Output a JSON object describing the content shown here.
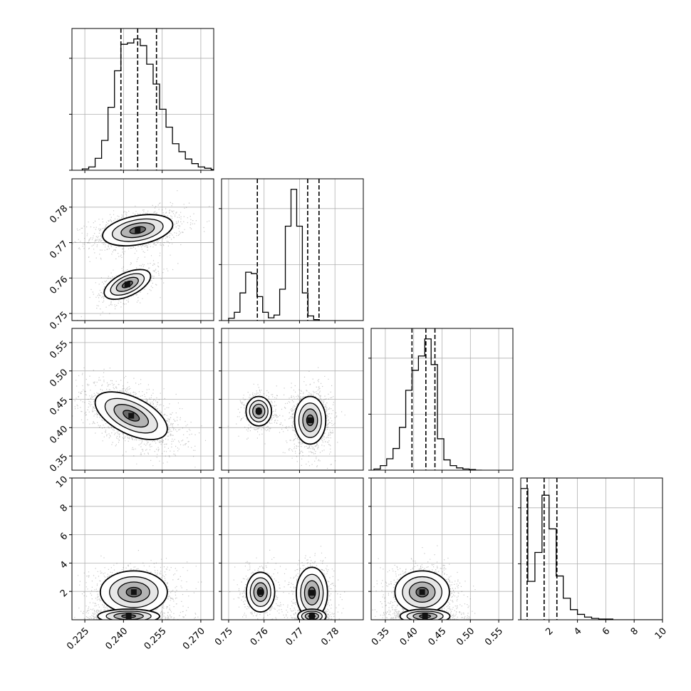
{
  "chart_data": {
    "type": "corner",
    "n_params": 4,
    "grid": true,
    "params": [
      {
        "range": [
          0.22,
          0.275
        ],
        "ticks": [
          0.225,
          0.24,
          0.255,
          0.27
        ],
        "tick_labels": [
          "0.225",
          "0.240",
          "0.255",
          "0.270"
        ],
        "quantiles": [
          0.239,
          0.2455,
          0.2528
        ],
        "hist": {
          "start": 0.224,
          "width": 0.0025,
          "counts": [
            2,
            5,
            18,
            45,
            95,
            150,
            190,
            192,
            198,
            188,
            160,
            130,
            92,
            65,
            40,
            28,
            17,
            10,
            5,
            3,
            1
          ]
        }
      },
      {
        "range": [
          0.748,
          0.788
        ],
        "ticks": [
          0.75,
          0.76,
          0.77,
          0.78
        ],
        "tick_labels": [
          "0.75",
          "0.76",
          "0.77",
          "0.78"
        ],
        "quantiles": [
          0.7581,
          0.7723,
          0.7755
        ],
        "hist": {
          "start": 0.75,
          "width": 0.0016,
          "counts": [
            5,
            18,
            60,
            105,
            102,
            52,
            18,
            6,
            12,
            68,
            205,
            285,
            205,
            60,
            10,
            2
          ]
        }
      },
      {
        "range": [
          0.325,
          0.575
        ],
        "ticks": [
          0.35,
          0.4,
          0.45,
          0.5,
          0.55
        ],
        "tick_labels": [
          "0.35",
          "0.40",
          "0.45",
          "0.50",
          "0.55"
        ],
        "quantiles": [
          0.397,
          0.4215,
          0.4375
        ],
        "hist": {
          "start": 0.33,
          "width": 0.0112,
          "counts": [
            2,
            8,
            20,
            38,
            75,
            140,
            175,
            200,
            230,
            185,
            55,
            18,
            8,
            4,
            2,
            1,
            0
          ]
        }
      },
      {
        "range": [
          0,
          10
        ],
        "ticks": [
          2,
          4,
          6,
          8,
          10
        ],
        "tick_labels": [
          "2",
          "4",
          "6",
          "8",
          "10"
        ],
        "quantiles": [
          0.45,
          1.65,
          2.55
        ],
        "hist": {
          "start": 0.0,
          "width": 0.5,
          "counts": [
            195,
            57,
            100,
            185,
            135,
            65,
            32,
            15,
            8,
            4,
            2,
            1,
            1,
            0,
            0,
            0,
            0,
            0,
            0,
            0
          ]
        }
      }
    ],
    "pairs": [
      {
        "row": 1,
        "col": 0,
        "modes": [
          {
            "mean": [
              0.2455,
              0.7735
            ],
            "sd": [
              0.0068,
              0.0022
            ],
            "rho": 0.35,
            "weight": 0.72
          },
          {
            "mean": [
              0.2415,
              0.7582
            ],
            "sd": [
              0.0045,
              0.0021
            ],
            "rho": 0.55,
            "weight": 0.28
          }
        ]
      },
      {
        "row": 2,
        "col": 0,
        "modes": [
          {
            "mean": [
              0.243,
              0.421
            ],
            "sd": [
              0.007,
              0.021
            ],
            "rho": -0.55,
            "weight": 1.0
          }
        ]
      },
      {
        "row": 2,
        "col": 1,
        "modes": [
          {
            "mean": [
              0.7585,
              0.429
            ],
            "sd": [
              0.0018,
              0.013
            ],
            "rho": 0.0,
            "weight": 0.28
          },
          {
            "mean": [
              0.773,
              0.413
            ],
            "sd": [
              0.0022,
              0.021
            ],
            "rho": 0.0,
            "weight": 0.72
          }
        ]
      },
      {
        "row": 3,
        "col": 0,
        "modes": [
          {
            "mean": [
              0.244,
              1.95
            ],
            "sd": [
              0.0065,
              0.75
            ],
            "rho": 0.0,
            "weight": 0.55
          },
          {
            "mean": [
              0.242,
              0.25
            ],
            "sd": [
              0.006,
              0.25
            ],
            "rho": 0.0,
            "weight": 0.45
          }
        ]
      },
      {
        "row": 3,
        "col": 1,
        "modes": [
          {
            "mean": [
              0.759,
              1.95
            ],
            "sd": [
              0.002,
              0.7
            ],
            "rho": 0.0,
            "weight": 0.28
          },
          {
            "mean": [
              0.7735,
              1.9
            ],
            "sd": [
              0.0022,
              0.9
            ],
            "rho": 0.0,
            "weight": 0.4
          },
          {
            "mean": [
              0.7735,
              0.25
            ],
            "sd": [
              0.002,
              0.25
            ],
            "rho": 0.0,
            "weight": 0.32
          }
        ]
      },
      {
        "row": 3,
        "col": 2,
        "modes": [
          {
            "mean": [
              0.415,
              1.95
            ],
            "sd": [
              0.024,
              0.75
            ],
            "rho": 0.0,
            "weight": 0.55
          },
          {
            "mean": [
              0.42,
              0.25
            ],
            "sd": [
              0.022,
              0.25
            ],
            "rho": 0.0,
            "weight": 0.45
          }
        ]
      }
    ],
    "colors": {
      "line": "#000000",
      "grid": "#b0b0b0",
      "point": "#000000"
    }
  }
}
